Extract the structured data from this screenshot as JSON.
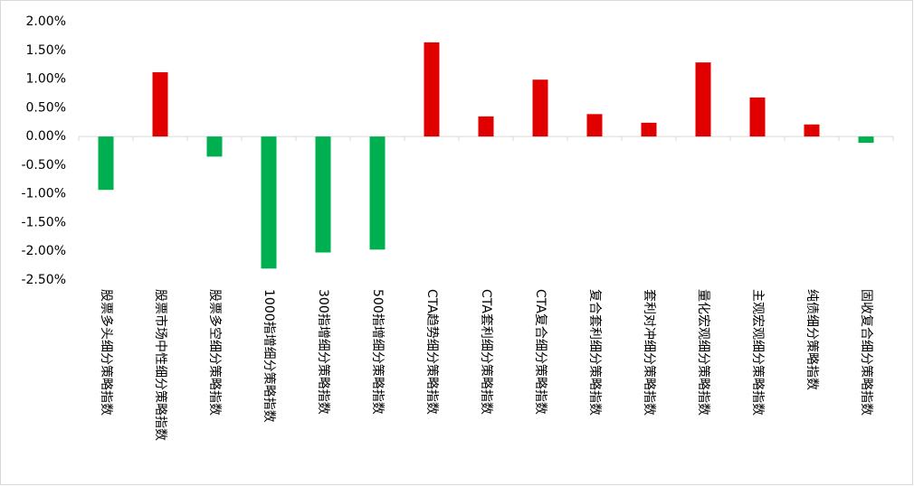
{
  "chart_data": {
    "type": "bar",
    "categories": [
      "股票多头细分策略指数",
      "股票市场中性细分策略指数",
      "股票多空细分策略指数",
      "1000指增细分策略指数",
      "300指增细分策略指数",
      "500指增细分策略指数",
      "CTA趋势细分策略指数",
      "CTA套利细分策略指数",
      "CTA复合细分策略指数",
      "复合套利细分策略指数",
      "套利对冲细分策略指数",
      "量化宏观细分策略指数",
      "主观宏观细分策略指数",
      "纯债细分策略指数",
      "固收复合细分策略指数"
    ],
    "values": [
      -0.93,
      1.12,
      -0.35,
      -2.3,
      -2.02,
      -1.97,
      1.64,
      0.35,
      0.99,
      0.39,
      0.24,
      1.29,
      0.68,
      0.21,
      -0.11
    ],
    "positive_color": "#e00000",
    "negative_color": "#00b050",
    "ylim": [
      -2.5,
      2.0
    ],
    "yticks": [
      {
        "value": 2.0,
        "label": "2.00%"
      },
      {
        "value": 1.5,
        "label": "1.50%"
      },
      {
        "value": 1.0,
        "label": "1.00%"
      },
      {
        "value": 0.5,
        "label": "0.50%"
      },
      {
        "value": 0.0,
        "label": "0.00%"
      },
      {
        "value": -0.5,
        "label": "-0.50%"
      },
      {
        "value": -1.0,
        "label": "-1.00%"
      },
      {
        "value": -1.5,
        "label": "-1.50%"
      },
      {
        "value": -2.0,
        "label": "-2.00%"
      },
      {
        "value": -2.5,
        "label": "-2.50%"
      }
    ],
    "grid": false
  }
}
